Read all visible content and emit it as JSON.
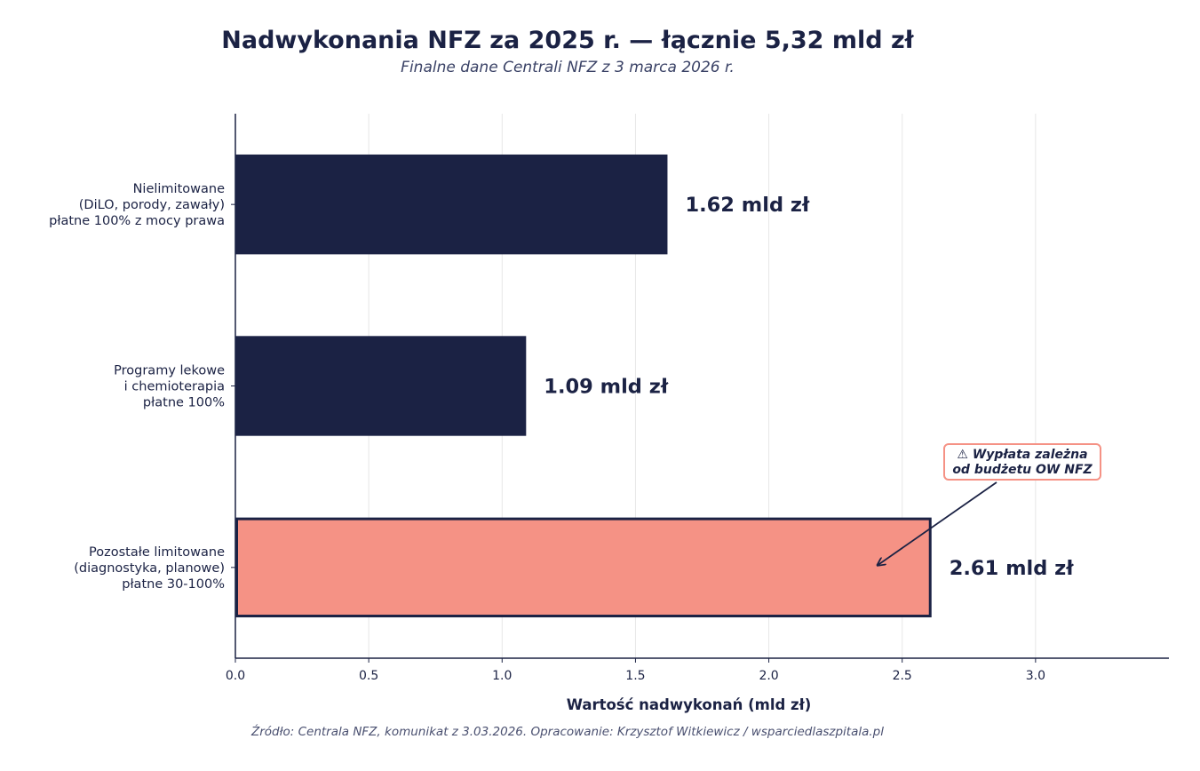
{
  "header": {
    "title": "Nadwykonania NFZ za 2025 r. — łącznie 5,32 mld zł",
    "subtitle": "Finalne dane Centrali NFZ z 3 marca 2026 r."
  },
  "footer": {
    "source": "Źródło: Centrala NFZ, komunikat z 3.03.2026. Opracowanie: Krzysztof Witkiewicz / wsparciedlaszpitala.pl"
  },
  "chart_data": {
    "type": "bar",
    "orientation": "horizontal",
    "title": "Nadwykonania NFZ za 2025 r. — łącznie 5,32 mld zł",
    "subtitle": "Finalne dane Centrali NFZ z 3 marca 2026 r.",
    "xlabel": "Wartość nadwykonań (mld zł)",
    "ylabel": "",
    "xlim": [
      0,
      3.5
    ],
    "xticks": [
      "0.0",
      "0.5",
      "1.0",
      "1.5",
      "2.0",
      "2.5",
      "3.0"
    ],
    "grid": "vertical",
    "categories": [
      [
        "Nielimitowane",
        "(DiLO, porody, zawały)",
        "płatne 100% z mocy prawa"
      ],
      [
        "Programy lekowe",
        "i chemioterapia",
        "płatne 100%"
      ],
      [
        "Pozostałe limitowane",
        "(diagnostyka, planowe)",
        "płatne 30-100%"
      ]
    ],
    "values": [
      1.62,
      1.09,
      2.61
    ],
    "value_labels": [
      "1.62 mld zł",
      "1.09 mld zł",
      "2.61 mld zł"
    ],
    "colors": [
      "#1b2244",
      "#1b2244",
      "#f59285"
    ],
    "highlight_index": 2,
    "annotation": {
      "lines": [
        "⚠ Wypłata zależna",
        "od budżetu OW NFZ"
      ],
      "target_value": 2.41,
      "target_category_index": 2,
      "border_color": "#f59285"
    }
  }
}
